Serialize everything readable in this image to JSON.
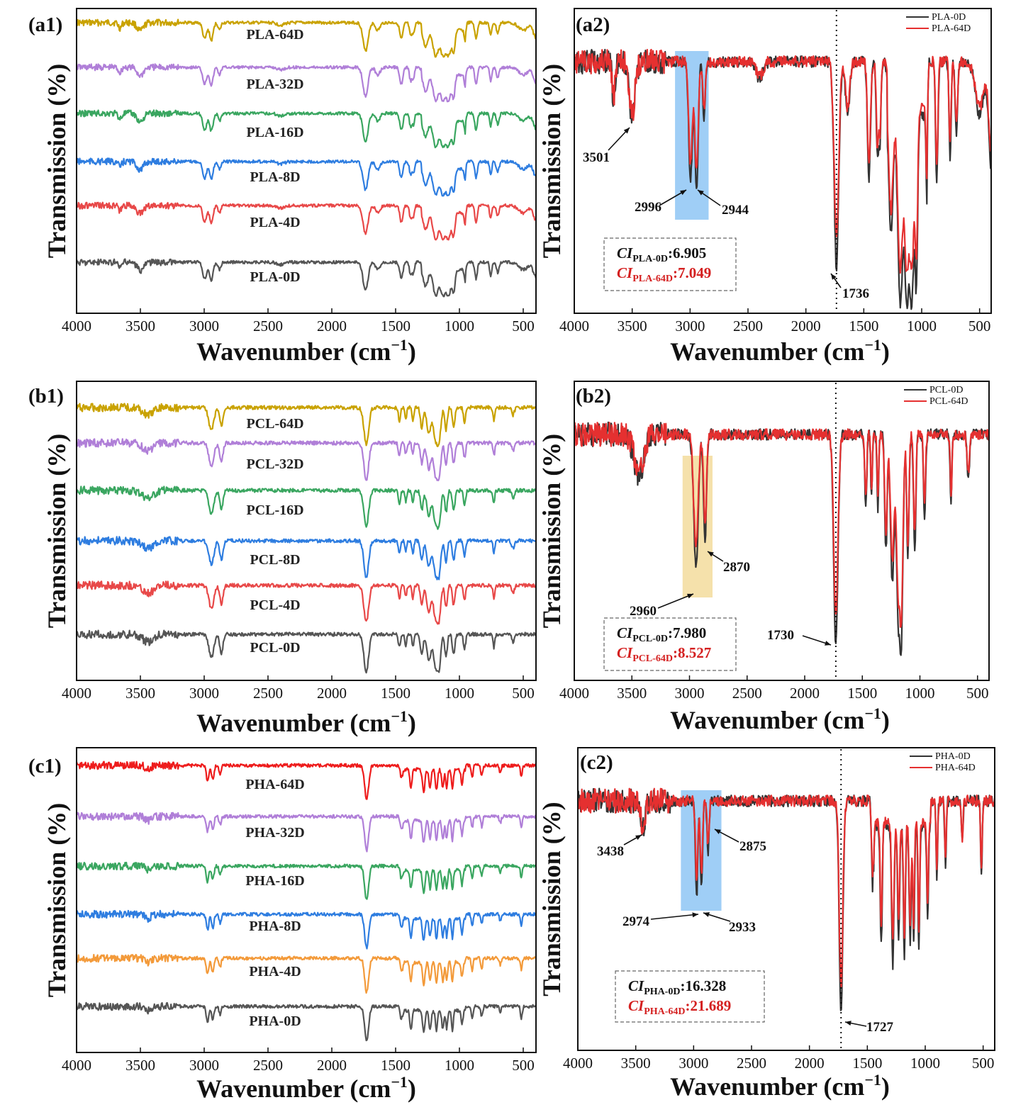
{
  "chart_data": [
    {
      "id": "a1",
      "panel_label": "(a1)",
      "type": "line",
      "xlabel": "Wavenumber (cm",
      "xlabel_sup": "−1",
      "xlabel_close": ")",
      "ylabel": "Transmission (%)",
      "xlim": [
        4000,
        400
      ],
      "x_ticks": [
        4000,
        3500,
        3000,
        2500,
        2000,
        1500,
        1000,
        500
      ],
      "y_ticks": false,
      "profile": "PLA",
      "series": [
        {
          "name": "PLA-64D",
          "color": "#c9a200"
        },
        {
          "name": "PLA-32D",
          "color": "#b07fd8"
        },
        {
          "name": "PLA-16D",
          "color": "#3aa660"
        },
        {
          "name": "PLA-8D",
          "color": "#2e7de0"
        },
        {
          "name": "PLA-4D",
          "color": "#e84848"
        },
        {
          "name": "PLA-0D",
          "color": "#555555"
        }
      ]
    },
    {
      "id": "a2",
      "panel_label": "(a2)",
      "type": "line",
      "xlabel": "Wavenumber (cm",
      "xlabel_sup": "−1",
      "xlabel_close": ")",
      "ylabel": "Transmission (%)",
      "xlim": [
        4000,
        400
      ],
      "x_ticks": [
        4000,
        3500,
        3000,
        2500,
        2000,
        1500,
        1000,
        500
      ],
      "y_ticks": false,
      "profile": "PLA",
      "legend": "top-right",
      "series": [
        {
          "name": "PLA-0D",
          "color": "#333333"
        },
        {
          "name": "PLA-64D",
          "color": "#e53030"
        }
      ],
      "highlight": {
        "x_from": 3130,
        "x_to": 2840,
        "color": "#8ec5f5"
      },
      "vline_x": 1736,
      "peaks": [
        "3501",
        "2996",
        "2944",
        "1736"
      ],
      "ci": [
        {
          "sym": "CI",
          "sub": "PLA-0D",
          "value": ":6.905",
          "color": "#111111"
        },
        {
          "sym": "CI",
          "sub": "PLA-64D",
          "value": ":7.049",
          "color": "#d42020"
        }
      ]
    },
    {
      "id": "b1",
      "panel_label": "(b1)",
      "type": "line",
      "xlabel": "Wavenumber (cm",
      "xlabel_sup": "−1",
      "xlabel_close": ")",
      "ylabel": "Transmission (%)",
      "xlim": [
        4000,
        400
      ],
      "x_ticks": [
        4000,
        3500,
        3000,
        2500,
        2000,
        1500,
        1000,
        500
      ],
      "y_ticks": false,
      "profile": "PCL",
      "series": [
        {
          "name": "PCL-64D",
          "color": "#c9a200"
        },
        {
          "name": "PCL-32D",
          "color": "#b07fd8"
        },
        {
          "name": "PCL-16D",
          "color": "#3aa660"
        },
        {
          "name": "PCL-8D",
          "color": "#2e7de0"
        },
        {
          "name": "PCL-4D",
          "color": "#e84848"
        },
        {
          "name": "PCL-0D",
          "color": "#555555"
        }
      ]
    },
    {
      "id": "b2",
      "panel_label": "(b2)",
      "type": "line",
      "xlabel": "Wavenumber (cm",
      "xlabel_sup": "−1",
      "xlabel_close": ")",
      "ylabel": "Transmission (%)",
      "xlim": [
        4000,
        400
      ],
      "x_ticks": [
        4000,
        3500,
        3000,
        2500,
        2000,
        1500,
        1000,
        500
      ],
      "y_ticks": false,
      "profile": "PCL",
      "legend": "top-right",
      "series": [
        {
          "name": "PCL-0D",
          "color": "#333333"
        },
        {
          "name": "PCL-64D",
          "color": "#e53030"
        }
      ],
      "highlight": {
        "x_from": 3060,
        "x_to": 2800,
        "color": "#f3dc9c"
      },
      "vline_x": 1730,
      "peaks": [
        "2870",
        "2960",
        "1730"
      ],
      "ci": [
        {
          "sym": "CI",
          "sub": "PCL-0D",
          "value": ":7.980",
          "color": "#111111"
        },
        {
          "sym": "CI",
          "sub": "PCL-64D",
          "value": ":8.527",
          "color": "#d42020"
        }
      ]
    },
    {
      "id": "c1",
      "panel_label": "(c1)",
      "type": "line",
      "xlabel": "Wavenumber (cm",
      "xlabel_sup": "−1",
      "xlabel_close": ")",
      "ylabel": "Transmission (%)",
      "xlim": [
        4000,
        400
      ],
      "x_ticks": [
        4000,
        3500,
        3000,
        2500,
        2000,
        1500,
        1000,
        500
      ],
      "y_ticks": false,
      "profile": "PHA",
      "series": [
        {
          "name": "PHA-64D",
          "color": "#ee1c1c"
        },
        {
          "name": "PHA-32D",
          "color": "#b07fd8"
        },
        {
          "name": "PHA-16D",
          "color": "#3aa660"
        },
        {
          "name": "PHA-8D",
          "color": "#2e7de0"
        },
        {
          "name": "PHA-4D",
          "color": "#f39a3a"
        },
        {
          "name": "PHA-0D",
          "color": "#555555"
        }
      ]
    },
    {
      "id": "c2",
      "panel_label": "(c2)",
      "type": "line",
      "xlabel": "Wavenumber (cm",
      "xlabel_sup": "−1",
      "xlabel_close": ")",
      "ylabel": "Transmission (%)",
      "xlim": [
        4000,
        400
      ],
      "x_ticks": [
        4000,
        3500,
        3000,
        2500,
        2000,
        1500,
        1000,
        500
      ],
      "y_ticks": false,
      "profile": "PHA",
      "legend": "top-right",
      "series": [
        {
          "name": "PHA-0D",
          "color": "#333333"
        },
        {
          "name": "PHA-64D",
          "color": "#e53030"
        }
      ],
      "highlight": {
        "x_from": 3110,
        "x_to": 2760,
        "color": "#8ec5f5"
      },
      "vline_x": 1727,
      "peaks": [
        "3438",
        "2875",
        "2974",
        "2933",
        "1727"
      ],
      "ci": [
        {
          "sym": "CI",
          "sub": "PHA-0D",
          "value": ":16.328",
          "color": "#111111"
        },
        {
          "sym": "CI",
          "sub": "PHA-64D",
          "value": ":21.689",
          "color": "#d42020"
        }
      ]
    }
  ]
}
